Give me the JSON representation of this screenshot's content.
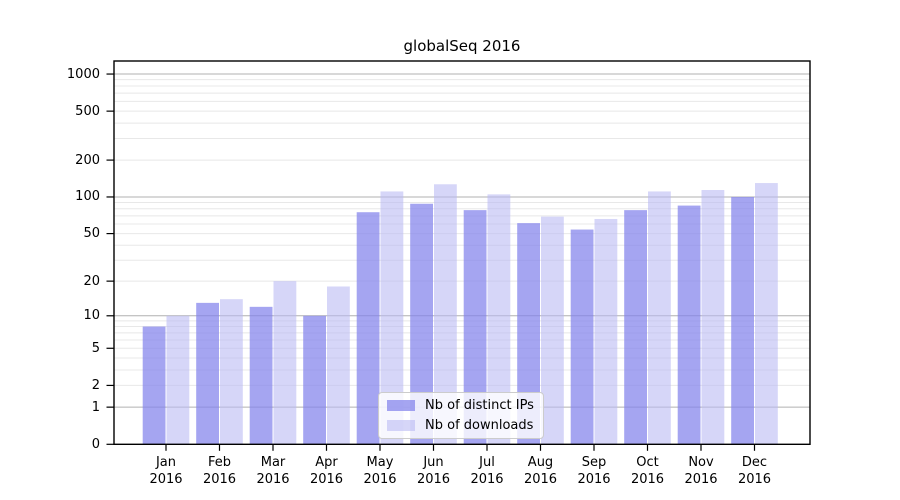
{
  "chart_data": {
    "type": "bar",
    "title": "globalSeq 2016",
    "categories": [
      "Jan",
      "Feb",
      "Mar",
      "Apr",
      "May",
      "Jun",
      "Jul",
      "Aug",
      "Sep",
      "Oct",
      "Nov",
      "Dec"
    ],
    "year_label": "2016",
    "series": [
      {
        "name": "Nb of distinct IPs",
        "color": "rgba(130,130,235,0.72)",
        "values": [
          8,
          13,
          12,
          10,
          75,
          88,
          78,
          61,
          54,
          78,
          85,
          100
        ]
      },
      {
        "name": "Nb of downloads",
        "color": "rgba(185,185,243,0.58)",
        "values": [
          10,
          14,
          20,
          18,
          111,
          127,
          105,
          69,
          66,
          111,
          114,
          130
        ]
      }
    ],
    "xlabel": "",
    "ylabel": "",
    "y_scale": "log10(1+v) (symlog-like, 0 at baseline)",
    "ylim": [
      0,
      1270
    ],
    "y_ticks": [
      0,
      1,
      2,
      5,
      10,
      20,
      50,
      100,
      200,
      500,
      1000
    ],
    "y_major_gridlines": [
      1,
      10,
      100,
      1000
    ],
    "y_minor_gridlines": [
      2,
      3,
      4,
      5,
      6,
      7,
      8,
      9,
      20,
      30,
      40,
      50,
      60,
      70,
      80,
      90,
      200,
      300,
      400,
      500,
      600,
      700,
      800,
      900
    ],
    "grid": "on",
    "legend_position": "lower center",
    "colors": {
      "major_gridline": "#b0b0b0",
      "minor_gridline": "#e8e8e8",
      "spine": "#000000",
      "background": "#ffffff"
    }
  }
}
